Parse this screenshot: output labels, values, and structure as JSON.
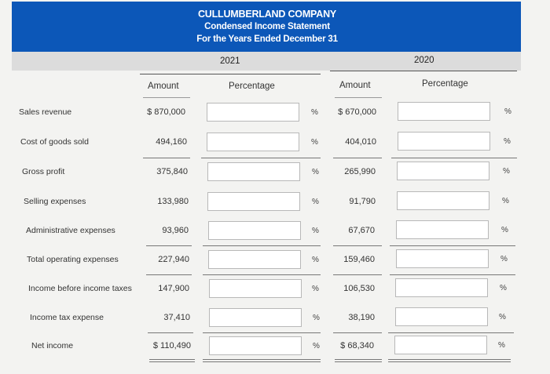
{
  "header": {
    "company": "CULLUMBERLAND COMPANY",
    "statement": "Condensed Income Statement",
    "period": "For the Years Ended December 31"
  },
  "years": {
    "y2021": "2021",
    "y2020": "2020"
  },
  "columns": {
    "amount": "Amount",
    "percentage": "Percentage"
  },
  "percent_sign": "%",
  "rows": [
    {
      "label": "Sales revenue",
      "amount_2021": "$ 870,000",
      "amount_2020": "$ 670,000"
    },
    {
      "label": "Cost of goods sold",
      "amount_2021": "494,160",
      "amount_2020": "404,010"
    },
    {
      "label": "Gross profit",
      "amount_2021": "375,840",
      "amount_2020": "265,990"
    },
    {
      "label": "Selling expenses",
      "amount_2021": "133,980",
      "amount_2020": "91,790"
    },
    {
      "label": "Administrative expenses",
      "amount_2021": "93,960",
      "amount_2020": "67,670"
    },
    {
      "label": "Total operating expenses",
      "amount_2021": "227,940",
      "amount_2020": "159,460"
    },
    {
      "label": "Income before income taxes",
      "amount_2021": "147,900",
      "amount_2020": "106,530"
    },
    {
      "label": "Income tax expense",
      "amount_2021": "37,410",
      "amount_2020": "38,190"
    },
    {
      "label": "Net income",
      "amount_2021": "$ 110,490",
      "amount_2020": "$ 68,340"
    }
  ],
  "colors": {
    "header_blue": "#0c57b8",
    "years_band": "#dcdcdc",
    "background": "#f3f3f1"
  }
}
